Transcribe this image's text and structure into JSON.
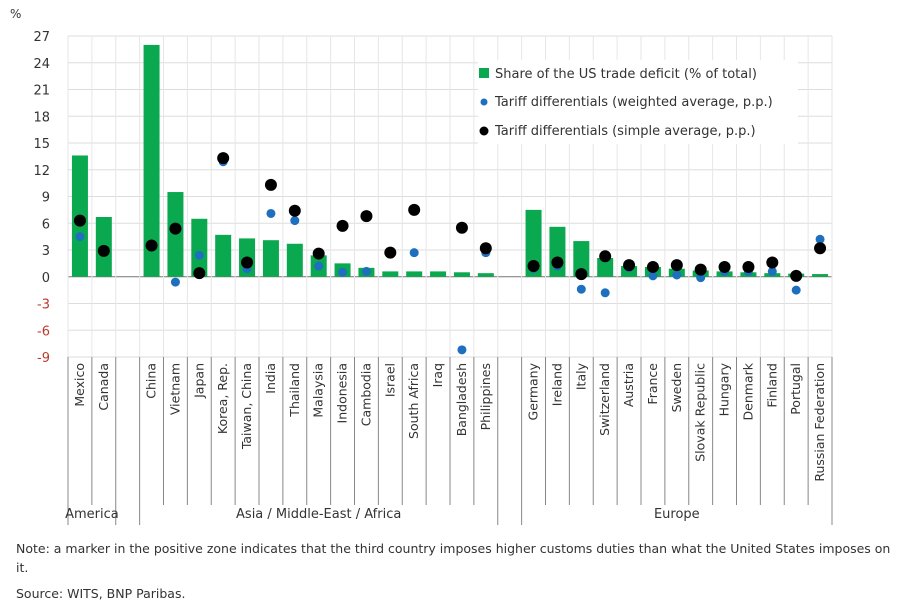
{
  "chart_data": {
    "type": "bar",
    "ylabel": "%",
    "ylim": [
      -9,
      27
    ],
    "yticks": [
      -9,
      -6,
      -3,
      0,
      3,
      6,
      9,
      12,
      15,
      18,
      21,
      24,
      27
    ],
    "negative_tick_color": "#c0392b",
    "grid": true,
    "legend_placement": "top-right",
    "groups": [
      {
        "name": "America",
        "categories": [
          "Mexico",
          "Canada"
        ]
      },
      {
        "name": "Asia / Middle-East / Africa",
        "categories": [
          "China",
          "Vietnam",
          "Japan",
          "Korea, Rep.",
          "Taiwan, China",
          "India",
          "Thailand",
          "Malaysia",
          "Indonesia",
          "Cambodia",
          "Israel",
          "South Africa",
          "Iraq",
          "Bangladesh",
          "Philippines"
        ]
      },
      {
        "name": "Europe",
        "categories": [
          "Germany",
          "Ireland",
          "Italy",
          "Switzerland",
          "Austria",
          "France",
          "Sweden",
          "Slovak Republic",
          "Hungary",
          "Denmark",
          "Finland",
          "Portugal",
          "Russian Federation"
        ]
      }
    ],
    "series": [
      {
        "name": "Share of the US trade deficit (% of total)",
        "kind": "bar",
        "color": "#0aa84f",
        "values": [
          13.6,
          6.7,
          26.0,
          9.5,
          6.5,
          4.7,
          4.3,
          4.1,
          3.7,
          2.4,
          1.5,
          1.0,
          0.6,
          0.6,
          0.6,
          0.5,
          0.4,
          7.5,
          5.6,
          4.0,
          2.1,
          1.2,
          1.1,
          0.9,
          0.7,
          0.6,
          0.5,
          0.4,
          0.35,
          0.3
        ]
      },
      {
        "name": "Tariff differentials (weighted average, p.p.)",
        "kind": "marker",
        "color": "#1f6fbf",
        "values": [
          4.5,
          2.9,
          3.4,
          -0.6,
          2.4,
          12.9,
          0.9,
          7.1,
          6.3,
          1.2,
          0.5,
          0.6,
          null,
          2.7,
          null,
          -8.2,
          2.7,
          0.9,
          1.2,
          -1.4,
          -1.8,
          1.0,
          0.1,
          0.2,
          -0.1,
          0.6,
          0.6,
          0.6,
          -1.5,
          4.2
        ]
      },
      {
        "name": "Tariff differentials (simple average, p.p.)",
        "kind": "marker",
        "color": "#000000",
        "values": [
          6.3,
          2.9,
          3.5,
          5.4,
          0.4,
          13.3,
          1.6,
          10.3,
          7.4,
          2.6,
          5.7,
          6.8,
          2.7,
          7.5,
          null,
          5.5,
          3.2,
          1.2,
          1.6,
          0.3,
          2.3,
          1.3,
          1.1,
          1.3,
          0.8,
          1.1,
          1.1,
          1.6,
          0.1,
          3.2
        ]
      }
    ]
  },
  "notes": {
    "note": "Note: a marker in the positive zone indicates that the third country imposes higher customs duties than what the United States imposes on it.",
    "source": "Source: WITS, BNP Paribas."
  }
}
